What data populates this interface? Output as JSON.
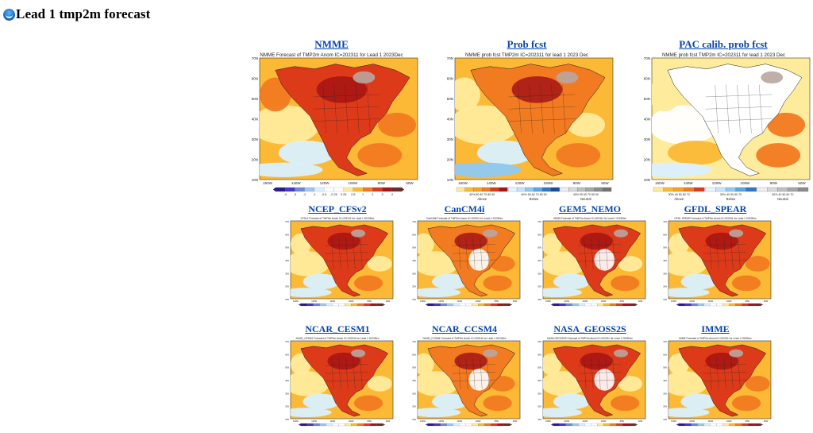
{
  "page": {
    "title": "Lead 1 tmp2m forecast",
    "logo_icon": "noaa-logo-icon"
  },
  "big_panels": [
    {
      "link": "NMME",
      "map_title": "NMME Forecast of TMP2m Anom IC=202311 for Lead 1 2023Dec",
      "kind": "anom",
      "legend_ticks": [
        "-4",
        "-3",
        "-2",
        "-1",
        "-0.5",
        "-0.25",
        "0.25",
        "0.5",
        "1",
        "2",
        "3",
        "4"
      ]
    },
    {
      "link": "Prob fcst",
      "map_title": "NMME prob fcst TMP2m IC=202311 for lead 1 2023 Dec",
      "kind": "prob",
      "legend_groups": [
        {
          "ticks": "40% 50 60 70 80 90",
          "label": "Above"
        },
        {
          "ticks": "40% 50 60 70 80 90",
          "label": "Below"
        },
        {
          "ticks": "40% 50 60 70 80 90",
          "label": "Neutral"
        }
      ]
    },
    {
      "link": "PAC calib. prob fcst",
      "map_title": "NMME prob fcst TMP2m IC=202311 for lead 1 2023 Dec",
      "kind": "pac",
      "legend_groups": [
        {
          "ticks": "30% 40 50 60 70",
          "label": "Above"
        },
        {
          "ticks": "30% 40 50 60 70",
          "label": "Below"
        },
        {
          "ticks": "30% 40 50 60 70",
          "label": "Neutral"
        }
      ]
    }
  ],
  "models": [
    {
      "link": "NCEP_CFSv2",
      "map_title": "CFSv2 Forecast of TMP2m Anom IC=202311 for Lead 1 2023Dec"
    },
    {
      "link": "CanCM4i",
      "map_title": "CanCM4i Forecast of TMP2m Anom IC=202311 for Lead 1 2023Dec"
    },
    {
      "link": "GEM5_NEMO",
      "map_title": "GEM5 Forecast of TMP2m Anom IC=202311 for Lead 1 2023Dec"
    },
    {
      "link": "GFDL_SPEAR",
      "map_title": "GFDL SPEAR Forecast of TMP2m Anom IC=202311 for Lead 1 2023Dec"
    },
    {
      "link": "NCAR_CESM1",
      "map_title": "NCAR_CESM1 Forecast of TMP2m Anom IC=202311 for Lead 1 2023Dec"
    },
    {
      "link": "NCAR_CCSM4",
      "map_title": "NCAR_CCSM4 Forecast of TMP2m Anom IC=202311 for Lead 1 2023Dec"
    },
    {
      "link": "NASA_GEOSS2S",
      "map_title": "NASA GEOSS2S Forecast of TMP2m Anom IC=202311 for Lead 1 2023Dec"
    },
    {
      "link": "IMME",
      "map_title": "IMME Forecast of TMP2m Anom IC=202311 for Lead 1 2023Dec"
    }
  ],
  "map_axes": {
    "lat_ticks": [
      "70N",
      "60N",
      "50N",
      "40N",
      "30N",
      "20N",
      "10N"
    ],
    "lon_ticks": [
      "160W",
      "140W",
      "120W",
      "100W",
      "80W",
      "60W"
    ]
  },
  "colors": {
    "link": "#0645ad",
    "warm_1": "#ffeb9c",
    "warm_2": "#fbb936",
    "warm_3": "#f27a21",
    "warm_4": "#dd3a1a",
    "warm_5": "#a61414",
    "cool_1": "#d9f0ff",
    "cool_2": "#8ec9f3",
    "neutral": "#b9a6a0",
    "land_line": "#1a1a1a"
  }
}
